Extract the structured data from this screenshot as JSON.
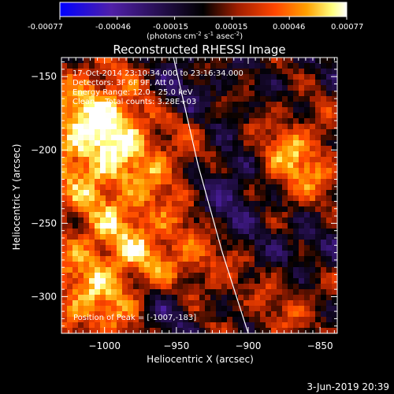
{
  "colorbar": {
    "ticks": [
      "-0.00077",
      "-0.00046",
      "-0.00015",
      "0.00015",
      "0.00046",
      "0.00077"
    ],
    "unit_main": "(photons cm",
    "unit_sup1": "-2",
    "unit_mid": " s",
    "unit_sup2": "-1",
    "unit_tail": " asec",
    "unit_sup3": "-2",
    "unit_close": ")"
  },
  "chart_data": {
    "type": "heatmap",
    "title": "Reconstructed RHESSI Image",
    "xlabel": "Heliocentric X (arcsec)",
    "ylabel": "Heliocentric Y (arcsec)",
    "xlim": [
      -1030,
      -838
    ],
    "ylim": [
      -325,
      -137
    ],
    "x_ticks": [
      -1000,
      -950,
      -900,
      -850
    ],
    "y_ticks": [
      -150,
      -200,
      -250,
      -300
    ],
    "x_tick_labels": [
      "−1000",
      "−950",
      "−900",
      "−850"
    ],
    "y_tick_labels": [
      "−150",
      "−200",
      "−250",
      "−300"
    ],
    "color_range": [
      -0.00077,
      0.00077
    ],
    "colormap_stops": [
      "#0000ff",
      "#5020a8",
      "#000000",
      "#a01e00",
      "#ff4600",
      "#ffa000",
      "#ffff80",
      "#ffffff"
    ],
    "annotations": [
      "17-Oct-2014 23:10:34.000 to 23:16:34.000",
      "Detectors: 3F 6F 9F, Att 0",
      "Energy Range: 12.0 - 25.0 keV",
      "Clean    Total counts: 3.28E+03"
    ],
    "peak_label": "Position of Peak = [-1007,-183]",
    "peak": [
      -1007,
      -183
    ],
    "limb": [
      [
        -952,
        -137
      ],
      [
        -935,
        -210
      ],
      [
        -918,
        -270
      ],
      [
        -900,
        -325
      ]
    ],
    "sources": [
      {
        "x": -1005,
        "y": -185,
        "sigma": 28,
        "amp": 0.00075
      },
      {
        "x": -985,
        "y": -255,
        "sigma": 35,
        "amp": 0.00045
      },
      {
        "x": -870,
        "y": -210,
        "sigma": 22,
        "amp": 0.0006
      },
      {
        "x": -935,
        "y": -275,
        "sigma": 22,
        "amp": 0.0003
      },
      {
        "x": -945,
        "y": -205,
        "sigma": 18,
        "amp": 0.0002
      },
      {
        "x": -870,
        "y": -305,
        "sigma": 20,
        "amp": 0.00025
      },
      {
        "x": -1010,
        "y": -305,
        "sigma": 25,
        "amp": 0.0004
      }
    ],
    "negative_regions": [
      {
        "x": -910,
        "y": -230,
        "sigma": 25,
        "amp": -0.0004
      },
      {
        "x": -950,
        "y": -160,
        "sigma": 15,
        "amp": -0.00025
      },
      {
        "x": -955,
        "y": -305,
        "sigma": 15,
        "amp": -0.00035
      },
      {
        "x": -860,
        "y": -270,
        "sigma": 15,
        "amp": -0.0002
      }
    ]
  },
  "footer_date": "3-Jun-2019 20:39"
}
